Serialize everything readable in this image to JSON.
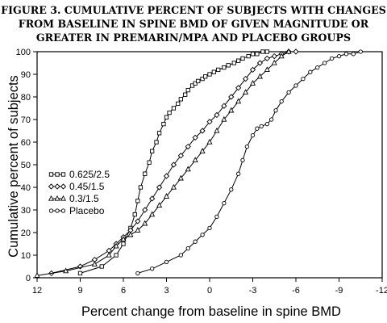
{
  "title": {
    "line1": "FIGURE 3. CUMULATIVE PERCENT OF SUBJECTS WITH CHANGES",
    "line2": "FROM BASELINE IN SPINE BMD OF GIVEN MAGNITUDE OR",
    "line3": "GREATER IN PREMARIN/MPA AND PLACEBO GROUPS"
  },
  "chart_data": {
    "type": "line",
    "xlabel": "Percent change from baseline in spine BMD",
    "ylabel": "Cumulative percent of subjects",
    "xlim": [
      12,
      -12
    ],
    "ylim": [
      0,
      100
    ],
    "xticks": [
      12,
      9,
      6,
      3,
      0,
      -3,
      -6,
      -9,
      -12
    ],
    "xtick_labels": [
      "12",
      "9",
      "6",
      "3",
      "0",
      "-3",
      "-6",
      "-9",
      "-12"
    ],
    "yticks": [
      0,
      10,
      20,
      30,
      40,
      50,
      60,
      70,
      80,
      90,
      100
    ],
    "ytick_labels": [
      "0",
      "10",
      "20",
      "30",
      "40",
      "50",
      "60",
      "70",
      "80",
      "90",
      "100"
    ],
    "grid": false,
    "legend": "left-middle",
    "series": [
      {
        "name": "0.625/2.5",
        "marker": "square",
        "x": [
          9,
          7.5,
          6.5,
          6,
          5.5,
          5.2,
          5,
          4.8,
          4.5,
          4.2,
          4,
          3.7,
          3.5,
          3.2,
          3,
          2.8,
          2.5,
          2.2,
          2,
          1.7,
          1.5,
          1.2,
          1,
          0.8,
          0.5,
          0.3,
          0,
          -0.3,
          -0.6,
          -1,
          -1.3,
          -1.7,
          -2,
          -2.3,
          -2.7,
          -3,
          -3.3,
          -3.7,
          -4
        ],
        "y": [
          2,
          5,
          10,
          15,
          22,
          28,
          34,
          40,
          46,
          51,
          56,
          60,
          64,
          68,
          71,
          73,
          75,
          77,
          79,
          81,
          83,
          85,
          86,
          87,
          88,
          89,
          90,
          91,
          92,
          93,
          94,
          95,
          96,
          97,
          98,
          99,
          99,
          100,
          100
        ]
      },
      {
        "name": "0.45/1.5",
        "marker": "diamond",
        "x": [
          11,
          9,
          8,
          7,
          6.5,
          6,
          5.5,
          5,
          4.5,
          4,
          3.5,
          3,
          2.5,
          2,
          1.5,
          1,
          0.5,
          0,
          -0.5,
          -1,
          -1.5,
          -2,
          -2.5,
          -3,
          -3.5,
          -4,
          -4.5,
          -5,
          -5.5,
          -6
        ],
        "y": [
          2,
          5,
          8,
          12,
          15,
          18,
          21,
          25,
          30,
          35,
          40,
          45,
          50,
          54,
          58,
          62,
          65,
          69,
          72,
          76,
          80,
          84,
          88,
          92,
          95,
          97,
          98,
          99,
          100,
          100
        ]
      },
      {
        "name": "0.3/1.5",
        "marker": "triangle",
        "x": [
          12,
          10,
          8,
          7,
          6.5,
          6,
          5.5,
          5,
          4.5,
          4,
          3.5,
          3,
          2.5,
          2,
          1.5,
          1,
          0.5,
          0,
          -0.5,
          -1,
          -1.5,
          -2,
          -2.5,
          -3,
          -3.5,
          -4,
          -4.5,
          -5,
          -5.5
        ],
        "y": [
          1,
          3,
          6,
          10,
          14,
          17,
          19,
          21,
          24,
          28,
          32,
          36,
          40,
          44,
          48,
          52,
          56,
          60,
          65,
          70,
          74,
          78,
          82,
          86,
          89,
          92,
          95,
          98,
          100
        ]
      },
      {
        "name": "Placebo",
        "marker": "circle",
        "x": [
          5,
          4,
          3,
          2,
          1.5,
          1,
          0.5,
          0,
          -0.5,
          -1,
          -1.5,
          -2,
          -2.3,
          -2.6,
          -3,
          -3.3,
          -3.6,
          -4,
          -4.3,
          -4.6,
          -5,
          -5.5,
          -6,
          -6.5,
          -7,
          -7.5,
          -8,
          -8.5,
          -9,
          -9.5,
          -10,
          -10.5
        ],
        "y": [
          2,
          4,
          7,
          10,
          13,
          16,
          19,
          22,
          27,
          33,
          39,
          46,
          52,
          58,
          63,
          66,
          67,
          68,
          70,
          74,
          78,
          82,
          85,
          88,
          91,
          93,
          95,
          97,
          98,
          99,
          99,
          100
        ]
      }
    ]
  }
}
